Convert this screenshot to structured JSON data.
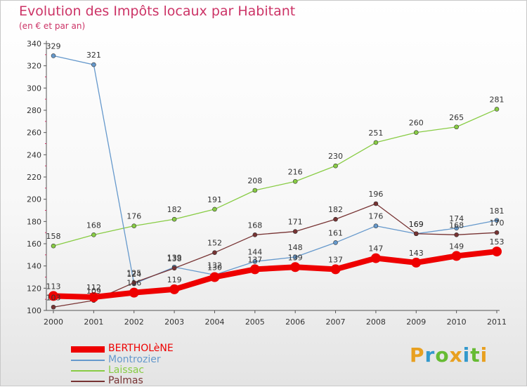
{
  "title": "Evolution des Impôts locaux par Habitant",
  "subtitle": "(en € et par an)",
  "brand": {
    "letters": [
      "P",
      "r",
      "o",
      "x",
      "i",
      "t",
      "i"
    ],
    "colors": [
      "#e8a020",
      "#3399cc",
      "#66bb33",
      "#e8a020",
      "#3399cc",
      "#66bb33",
      "#e8a020"
    ]
  },
  "chart_data": {
    "type": "line",
    "title": "Evolution des Impôts locaux par Habitant",
    "ylabel": "(en € et par an)",
    "xlabel": "",
    "x": [
      "2000",
      "2001",
      "2002",
      "2003",
      "2004",
      "2005",
      "2006",
      "2007",
      "2008",
      "2009",
      "2010",
      "2011"
    ],
    "ylim": [
      100,
      340
    ],
    "yticks": [
      "100",
      "120",
      "140",
      "160",
      "180",
      "200",
      "220",
      "240",
      "260",
      "280",
      "300",
      "320",
      "340"
    ],
    "legend_position": "bottom-left",
    "series": [
      {
        "name": "BERTHOLèNE",
        "color": "#ee0000",
        "values": [
          113,
          112,
          116,
          119,
          130,
          137,
          139,
          137,
          147,
          143,
          149,
          153
        ],
        "labels": [
          "113",
          "112",
          "116",
          "119",
          "130",
          "137",
          "139",
          "137",
          "147",
          "143",
          "149",
          "153"
        ]
      },
      {
        "name": "Montrozier",
        "color": "#6699cc",
        "values": [
          329,
          321,
          124,
          139,
          132,
          144,
          148,
          161,
          176,
          169,
          174,
          181
        ],
        "labels": [
          "329",
          "321",
          "124",
          "139",
          "132",
          "144",
          "148",
          "161",
          "176",
          "169",
          "174",
          "181"
        ]
      },
      {
        "name": "Laissac",
        "color": "#88cc44",
        "values": [
          158,
          168,
          176,
          182,
          191,
          208,
          216,
          230,
          251,
          260,
          265,
          281
        ],
        "labels": [
          "158",
          "168",
          "176",
          "182",
          "191",
          "208",
          "216",
          "230",
          "251",
          "260",
          "265",
          "281"
        ]
      },
      {
        "name": "Palmas",
        "color": "#773333",
        "values": [
          103,
          109,
          125,
          138,
          152,
          168,
          171,
          182,
          196,
          169,
          168,
          170
        ],
        "labels": [
          "103",
          "109",
          "125",
          "138",
          "152",
          "168",
          "171",
          "182",
          "196",
          "169",
          "168",
          "170"
        ]
      }
    ]
  }
}
